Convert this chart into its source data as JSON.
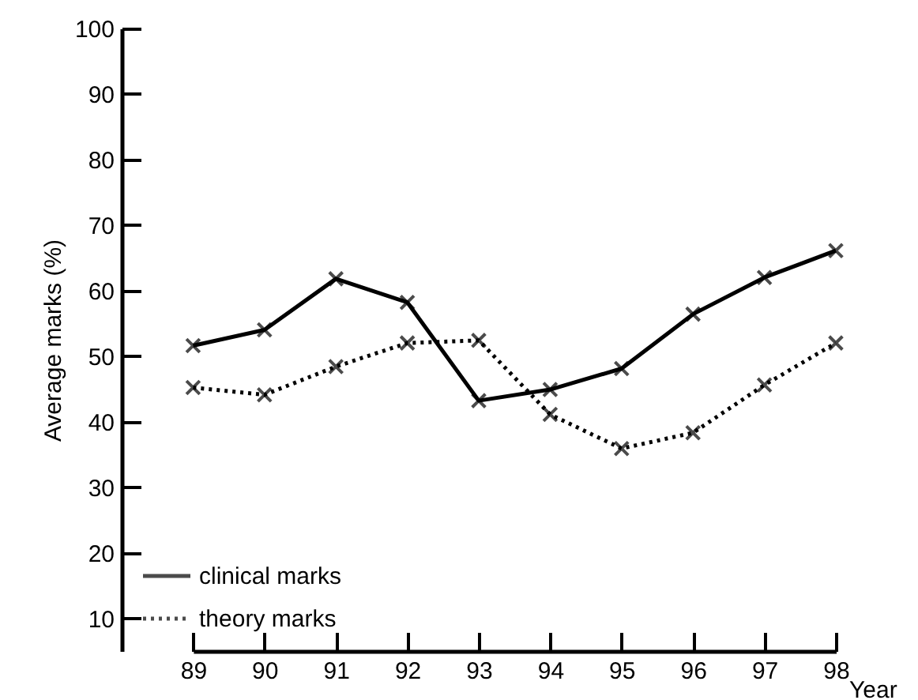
{
  "chart_data": {
    "type": "line",
    "xlabel": "Year",
    "ylabel": "Average marks (%)",
    "categories": [
      "89",
      "90",
      "91",
      "92",
      "93",
      "94",
      "95",
      "96",
      "97",
      "98"
    ],
    "series": [
      {
        "name": "clinical marks",
        "color": "#000000",
        "line_style": "solid",
        "values": [
          51.6,
          54.0,
          61.8,
          58.2,
          43.2,
          44.9,
          48.1,
          56.4,
          62.0,
          66.1
        ]
      },
      {
        "name": "theory marks",
        "color": "#000000",
        "line_style": "dotted",
        "values": [
          45.2,
          44.1,
          48.4,
          52.0,
          52.4,
          41.1,
          35.9,
          38.3,
          45.6,
          52.0
        ]
      }
    ],
    "ylim": [
      5,
      100
    ],
    "yticks": [
      10,
      20,
      30,
      40,
      50,
      60,
      70,
      80,
      90,
      100
    ],
    "marker": "cross",
    "legend": "bottom left",
    "grid": false
  }
}
